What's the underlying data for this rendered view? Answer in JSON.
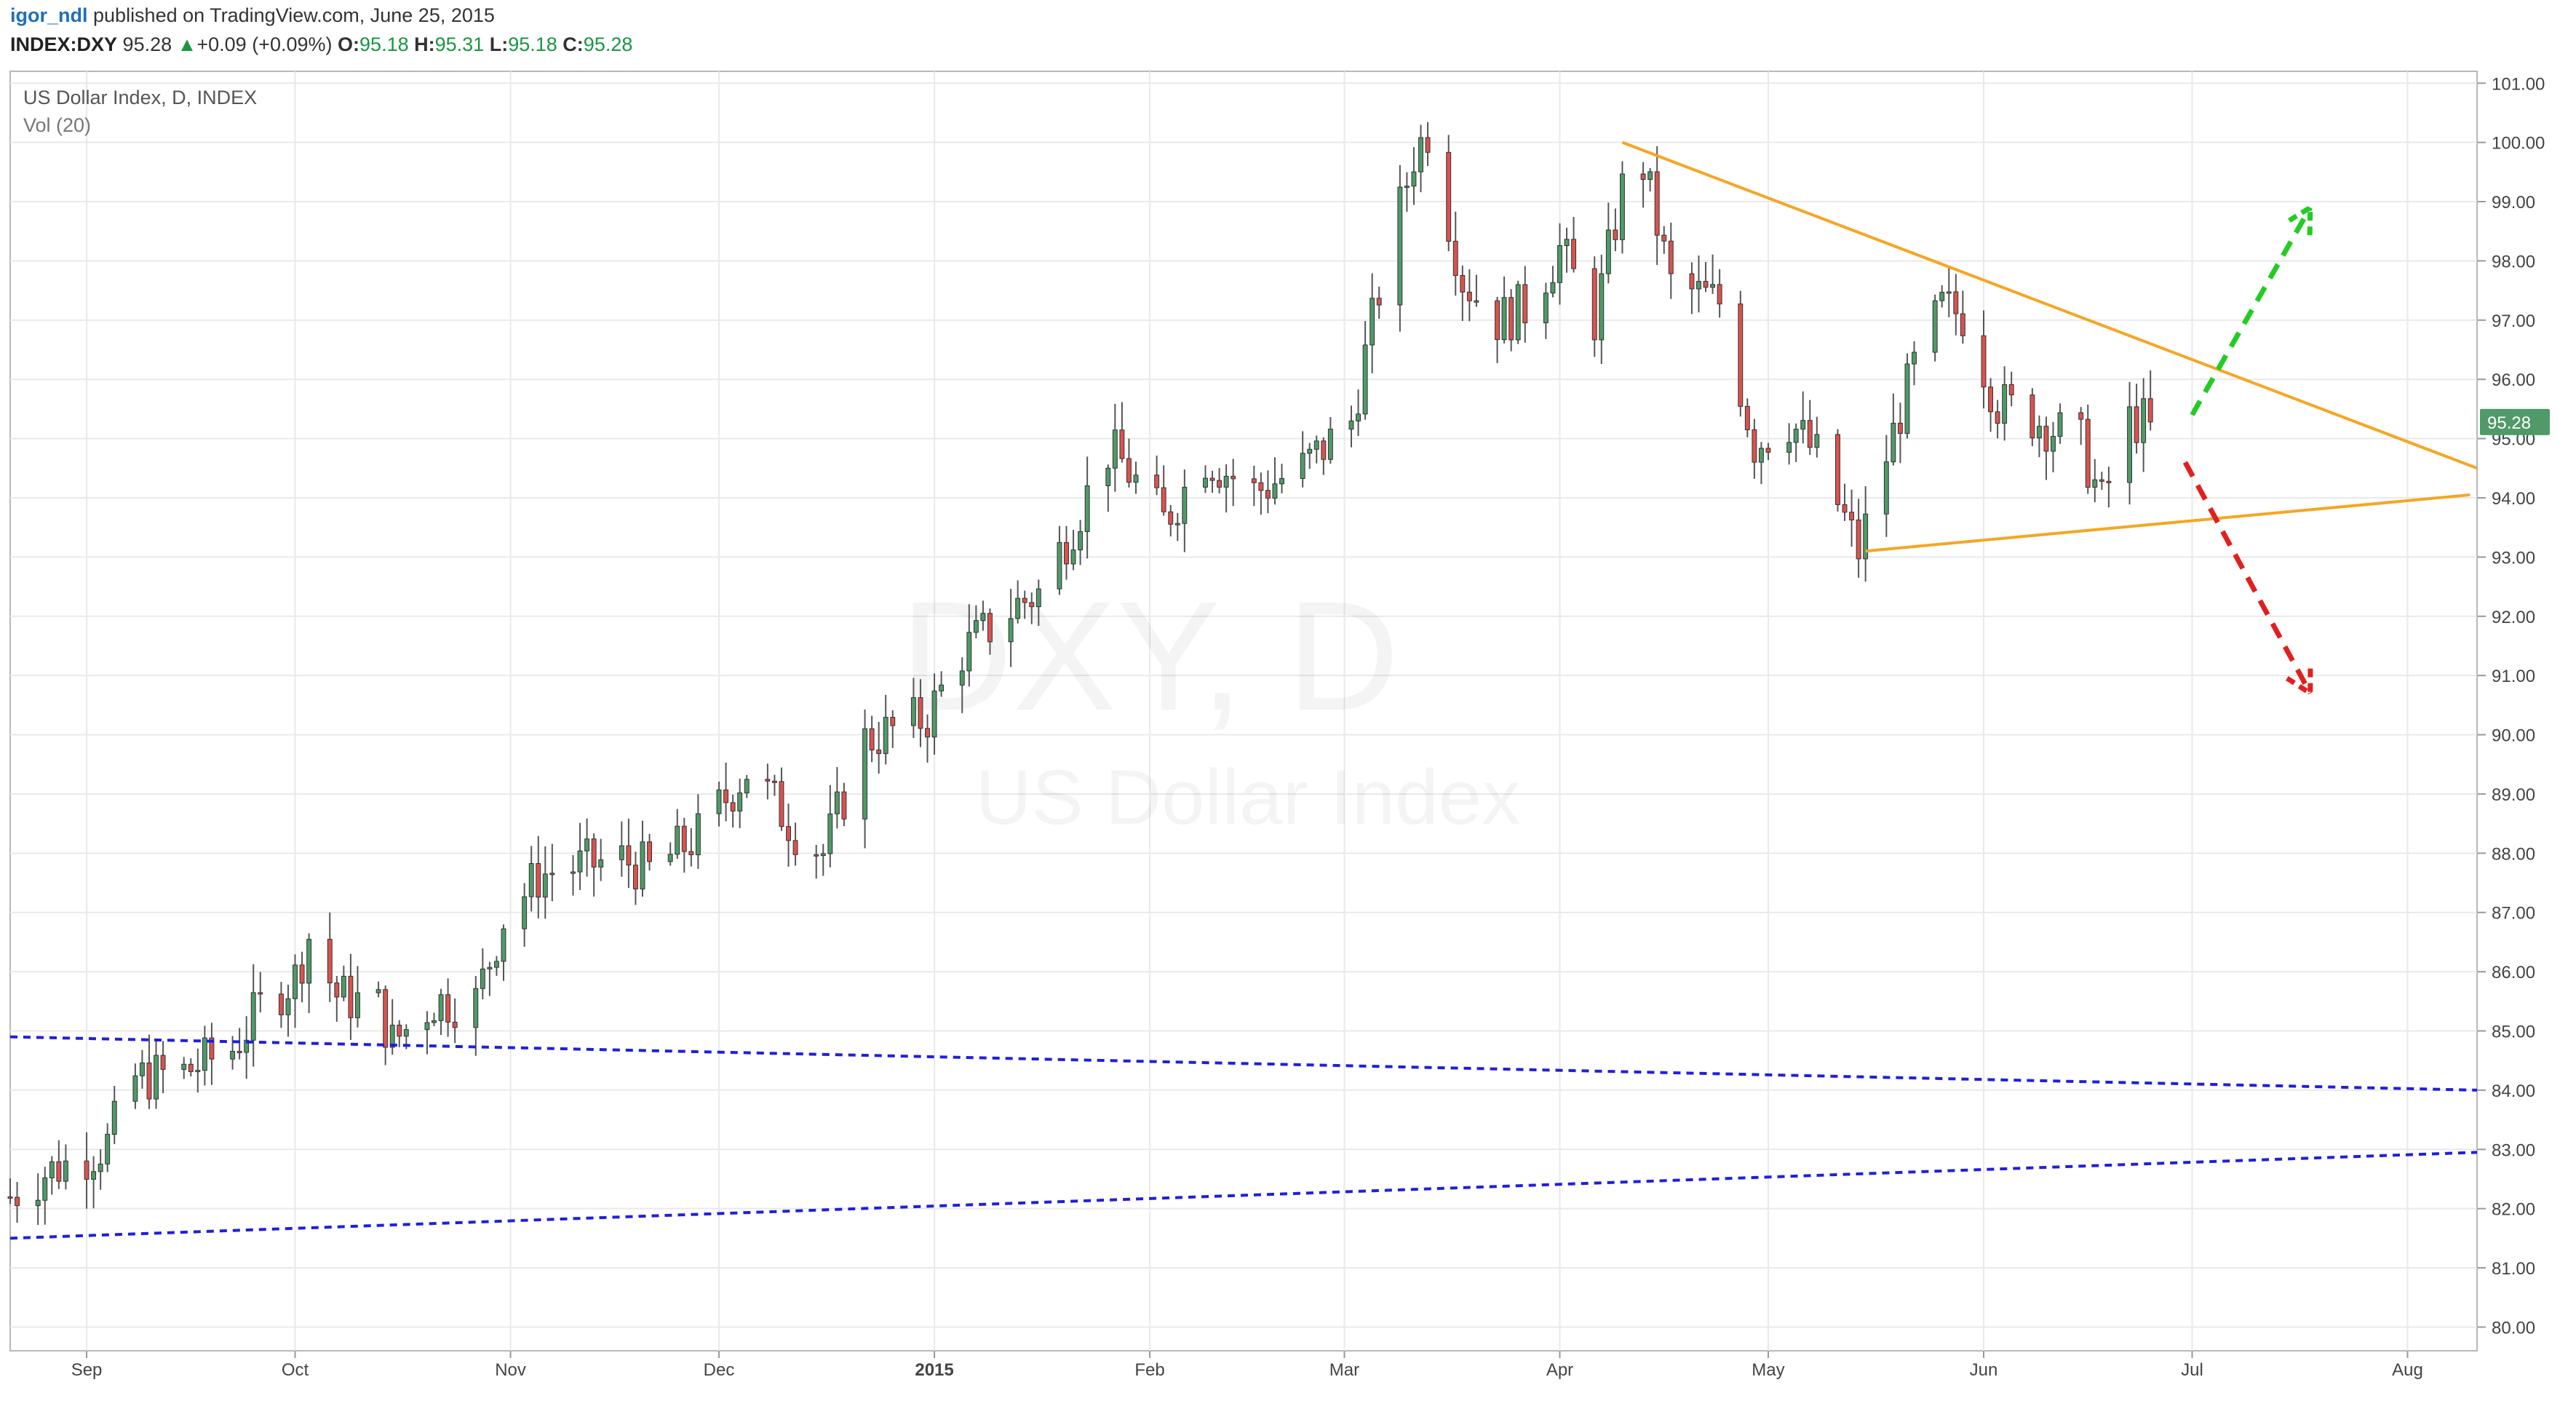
{
  "header": {
    "author": "igor_ndl",
    "published": "published on TradingView.com, June 25, 2015",
    "symbol": "INDEX:DXY",
    "last": "95.28",
    "change": "+0.09 (+0.09%)",
    "open_label": "O:",
    "open": "95.18",
    "high_label": "H:",
    "high": "95.31",
    "low_label": "L:",
    "low": "95.18",
    "close_label": "C:",
    "close": "95.28"
  },
  "legend": {
    "title": "US Dollar Index, D, INDEX",
    "indicator": "Vol (20)"
  },
  "watermark": {
    "line1": "DXY, D",
    "line2": "US Dollar Index"
  },
  "colors": {
    "up": "#4f9a68",
    "down": "#d9534f",
    "wick": "#555555",
    "triangle": "#f5a623",
    "channel": "#1f1fdd",
    "arrow_up": "#22cc22",
    "arrow_down": "#e02020",
    "grid": "#e9e9e9",
    "price_tag": "#4f9a68"
  },
  "chart_data": {
    "type": "candlestick",
    "title": "US Dollar Index, D, INDEX",
    "x_range": [
      "2014-08-21",
      "2015-08-11"
    ],
    "ylim": [
      79.6,
      101.2
    ],
    "y_ticks": [
      "80.00",
      "81.00",
      "82.00",
      "83.00",
      "84.00",
      "85.00",
      "86.00",
      "87.00",
      "88.00",
      "89.00",
      "90.00",
      "91.00",
      "92.00",
      "93.00",
      "94.00",
      "95.00",
      "96.00",
      "97.00",
      "98.00",
      "99.00",
      "100.00",
      "101.00"
    ],
    "x_ticks": [
      {
        "date": "2014-09-01",
        "label": "Sep"
      },
      {
        "date": "2014-10-01",
        "label": "Oct"
      },
      {
        "date": "2014-11-01",
        "label": "Nov"
      },
      {
        "date": "2014-12-01",
        "label": "Dec"
      },
      {
        "date": "2015-01-01",
        "label": "2015"
      },
      {
        "date": "2015-02-01",
        "label": "Feb"
      },
      {
        "date": "2015-03-01",
        "label": "Mar"
      },
      {
        "date": "2015-04-01",
        "label": "Apr"
      },
      {
        "date": "2015-05-01",
        "label": "May"
      },
      {
        "date": "2015-06-01",
        "label": "Jun"
      },
      {
        "date": "2015-07-01",
        "label": "Jul"
      },
      {
        "date": "2015-08-01",
        "label": "Aug"
      }
    ],
    "last_price": "95.28",
    "close_path": [
      [
        "2014-08-21",
        82.2
      ],
      [
        "2014-08-26",
        82.6
      ],
      [
        "2014-09-01",
        82.9
      ],
      [
        "2014-09-04",
        83.1
      ],
      [
        "2014-09-08",
        84.2
      ],
      [
        "2014-09-15",
        84.3
      ],
      [
        "2014-09-22",
        84.7
      ],
      [
        "2014-09-26",
        85.4
      ],
      [
        "2014-10-01",
        85.9
      ],
      [
        "2014-10-03",
        86.6
      ],
      [
        "2014-10-07",
        85.6
      ],
      [
        "2014-10-13",
        85.4
      ],
      [
        "2014-10-15",
        84.8
      ],
      [
        "2014-10-21",
        85.5
      ],
      [
        "2014-10-27",
        85.5
      ],
      [
        "2014-10-31",
        86.9
      ],
      [
        "2014-11-05",
        87.6
      ],
      [
        "2014-11-07",
        87.7
      ],
      [
        "2014-11-17",
        87.9
      ],
      [
        "2014-11-21",
        87.7
      ],
      [
        "2014-11-28",
        88.3
      ],
      [
        "2014-12-05",
        89.4
      ],
      [
        "2014-12-08",
        89.0
      ],
      [
        "2014-12-12",
        88.4
      ],
      [
        "2014-12-16",
        88.0
      ],
      [
        "2014-12-22",
        89.9
      ],
      [
        "2014-12-31",
        90.3
      ],
      [
        "2015-01-05",
        91.4
      ],
      [
        "2015-01-13",
        92.2
      ],
      [
        "2015-01-16",
        92.4
      ],
      [
        "2015-01-22",
        93.8
      ],
      [
        "2015-01-26",
        94.8
      ],
      [
        "2015-01-28",
        94.6
      ],
      [
        "2015-02-03",
        93.6
      ],
      [
        "2015-02-09",
        94.7
      ],
      [
        "2015-02-16",
        94.1
      ],
      [
        "2015-02-23",
        94.5
      ],
      [
        "2015-03-02",
        95.3
      ],
      [
        "2015-03-06",
        97.5
      ],
      [
        "2015-03-11",
        99.8
      ],
      [
        "2015-03-13",
        100.2
      ],
      [
        "2015-03-18",
        97.7
      ],
      [
        "2015-03-23",
        97.0
      ],
      [
        "2015-03-27",
        97.2
      ],
      [
        "2015-04-01",
        98.2
      ],
      [
        "2015-04-06",
        97.0
      ],
      [
        "2015-04-10",
        99.2
      ],
      [
        "2015-04-13",
        99.6
      ],
      [
        "2015-04-17",
        97.6
      ],
      [
        "2015-04-24",
        97.3
      ],
      [
        "2015-04-29",
        94.9
      ],
      [
        "2015-05-04",
        95.3
      ],
      [
        "2015-05-08",
        94.7
      ],
      [
        "2015-05-14",
        93.1
      ],
      [
        "2015-05-18",
        94.7
      ],
      [
        "2015-05-22",
        96.2
      ],
      [
        "2015-05-26",
        97.2
      ],
      [
        "2015-05-29",
        97.1
      ],
      [
        "2015-06-03",
        95.6
      ],
      [
        "2015-06-09",
        95.3
      ],
      [
        "2015-06-15",
        94.9
      ],
      [
        "2015-06-18",
        93.9
      ],
      [
        "2015-06-22",
        95.3
      ],
      [
        "2015-06-25",
        95.28
      ]
    ],
    "trendlines": [
      {
        "name": "triangle-upper",
        "color": "orange",
        "from": [
          "2015-04-10",
          100.0
        ],
        "to": [
          "2015-08-11",
          94.5
        ]
      },
      {
        "name": "triangle-lower",
        "color": "orange",
        "from": [
          "2015-05-15",
          93.1
        ],
        "to": [
          "2015-08-10",
          94.05
        ]
      },
      {
        "name": "channel-upper",
        "color": "blue",
        "style": "dashed",
        "from": [
          "2014-08-21",
          84.9
        ],
        "to": [
          "2015-08-11",
          84.0
        ]
      },
      {
        "name": "channel-lower",
        "color": "blue",
        "style": "dashed",
        "from": [
          "2014-08-21",
          81.5
        ],
        "to": [
          "2015-08-11",
          82.95
        ]
      }
    ],
    "arrows": [
      {
        "name": "bullish-breakout",
        "color": "green",
        "style": "dashed",
        "from": [
          "2015-07-01",
          95.4
        ],
        "to": [
          "2015-07-18",
          98.9
        ]
      },
      {
        "name": "bearish-breakdown",
        "color": "red",
        "style": "dashed",
        "from": [
          "2015-06-30",
          94.6
        ],
        "to": [
          "2015-07-18",
          90.7
        ]
      }
    ]
  }
}
